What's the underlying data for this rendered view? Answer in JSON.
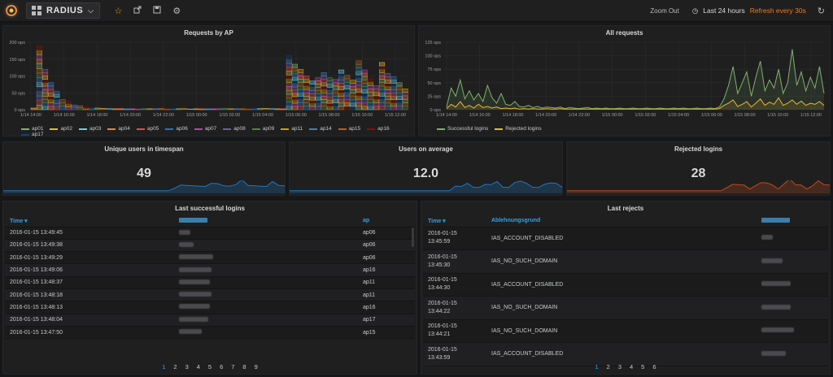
{
  "navbar": {
    "dashboard_title": "RADIUS",
    "icons": [
      "star-icon",
      "share-icon",
      "save-icon",
      "gear-icon"
    ],
    "zoom_out": "Zoom Out",
    "time_range": "Last 24 hours",
    "refresh": "Refresh every 30s"
  },
  "panels": {
    "requests_by_ap": {
      "title": "Requests by AP",
      "legend": [
        {
          "name": "ap01",
          "color": "#7eb26d"
        },
        {
          "name": "ap02",
          "color": "#eab839"
        },
        {
          "name": "ap03",
          "color": "#6ed0e0"
        },
        {
          "name": "ap04",
          "color": "#ef843c"
        },
        {
          "name": "ap05",
          "color": "#e24d42"
        },
        {
          "name": "ap06",
          "color": "#1f78c1"
        },
        {
          "name": "ap07",
          "color": "#ba43a9"
        },
        {
          "name": "ap08",
          "color": "#705da0"
        },
        {
          "name": "ap09",
          "color": "#508642"
        },
        {
          "name": "ap11",
          "color": "#cca300"
        },
        {
          "name": "ap14",
          "color": "#447ebc"
        },
        {
          "name": "ap15",
          "color": "#c15c17"
        },
        {
          "name": "ap16",
          "color": "#890f02"
        },
        {
          "name": "ap17",
          "color": "#0a437c"
        }
      ]
    },
    "all_requests": {
      "title": "All requests",
      "legend": [
        {
          "name": "Successful logins",
          "color": "#7eb26d"
        },
        {
          "name": "Rejected logins",
          "color": "#eab839"
        }
      ]
    },
    "unique_users": {
      "title": "Unique users in timespan",
      "value": "49",
      "spark_color": "#1f78c1"
    },
    "users_average": {
      "title": "Users on average",
      "value": "12.0",
      "spark_color": "#1f78c1"
    },
    "rejected_logins": {
      "title": "Rejected logins",
      "value": "28",
      "spark_color": "#bf4a1b"
    },
    "last_logins": {
      "title": "Last successful logins",
      "columns": [
        "Time ▾",
        "ap"
      ],
      "rows": [
        {
          "time": "2016-01-15 13:49:45",
          "ap": "ap06"
        },
        {
          "time": "2016-01-15 13:49:38",
          "ap": "ap06"
        },
        {
          "time": "2016-01-15 13:49:29",
          "ap": "ap06"
        },
        {
          "time": "2016-01-15 13:49:06",
          "ap": "ap16"
        },
        {
          "time": "2016-01-15 13:48:37",
          "ap": "ap11"
        },
        {
          "time": "2016-01-15 13:48:18",
          "ap": "ap11"
        },
        {
          "time": "2016-01-15 13:48:13",
          "ap": "ap16"
        },
        {
          "time": "2016-01-15 13:48:04",
          "ap": "ap17"
        },
        {
          "time": "2016-01-15 13:47:50",
          "ap": "ap15"
        }
      ],
      "pages": [
        "1",
        "2",
        "3",
        "4",
        "5",
        "6",
        "7",
        "8",
        "9"
      ]
    },
    "last_rejects": {
      "title": "Last rejects",
      "columns": [
        "Time ▾",
        "Ablehnungsgrund"
      ],
      "rows": [
        {
          "date": "2016-01-15",
          "time": "13:45:59",
          "reason": "IAS_ACCOUNT_DISABLED"
        },
        {
          "date": "2016-01-15",
          "time": "13:45:30",
          "reason": "IAS_NO_SUCH_DOMAIN"
        },
        {
          "date": "2016-01-15",
          "time": "13:44:30",
          "reason": "IAS_ACCOUNT_DISABLED"
        },
        {
          "date": "2016-01-15",
          "time": "13:44:22",
          "reason": "IAS_NO_SUCH_DOMAIN"
        },
        {
          "date": "2016-01-15",
          "time": "13:44:21",
          "reason": "IAS_NO_SUCH_DOMAIN"
        },
        {
          "date": "2016-01-15",
          "time": "13:43:59",
          "reason": "IAS_ACCOUNT_DISABLED"
        }
      ],
      "pages": [
        "1",
        "2",
        "3",
        "4",
        "5",
        "6"
      ]
    }
  },
  "chart_data": [
    {
      "type": "bar",
      "title": "Requests by AP",
      "ylim": [
        0,
        200
      ],
      "y_ticks": [
        "0 ops",
        "50 ops",
        "100 ops",
        "150 ops",
        "200 ops"
      ],
      "x_ticks": [
        "1/14 14:00",
        "1/14 16:00",
        "1/14 18:00",
        "1/14 20:00",
        "1/14 22:00",
        "1/15 00:00",
        "1/15 02:00",
        "1/15 04:00",
        "1/15 06:00",
        "1/15 08:00",
        "1/15 10:00",
        "1/15 12:00"
      ],
      "totals": [
        5,
        190,
        120,
        80,
        55,
        30,
        25,
        14,
        12,
        8,
        5,
        5,
        4,
        3,
        3,
        4,
        3,
        3,
        2,
        3,
        3,
        3,
        4,
        3,
        3,
        3,
        3,
        2,
        3,
        3,
        3,
        3,
        3,
        4,
        3,
        3,
        3,
        3,
        4,
        4,
        4,
        3,
        3,
        3,
        160,
        135,
        120,
        100,
        85,
        95,
        110,
        95,
        90,
        118,
        102,
        88,
        145,
        118,
        92,
        72,
        140,
        108,
        98,
        80,
        62
      ]
    },
    {
      "type": "line",
      "title": "All requests",
      "ylim": [
        0,
        125
      ],
      "y_ticks": [
        "0 ops",
        "25 ops",
        "50 ops",
        "75 ops",
        "100 ops",
        "125 ops"
      ],
      "x_ticks": [
        "1/14 14:00",
        "1/14 16:00",
        "1/14 18:00",
        "1/14 20:00",
        "1/14 22:00",
        "1/15 00:00",
        "1/15 02:00",
        "1/15 04:00",
        "1/15 06:00",
        "1/15 08:00",
        "1/15 10:00",
        "1/15 12:00"
      ],
      "series": [
        {
          "name": "Successful logins",
          "values": [
            5,
            40,
            25,
            55,
            20,
            35,
            18,
            30,
            15,
            45,
            22,
            12,
            30,
            10,
            8,
            15,
            6,
            5,
            8,
            4,
            6,
            3,
            5,
            4,
            3,
            5,
            2,
            4,
            3,
            2,
            3,
            4,
            2,
            3,
            2,
            3,
            2,
            2,
            3,
            2,
            2,
            3,
            2,
            2,
            3,
            2,
            2,
            3,
            2,
            2,
            3,
            2,
            3,
            2,
            2,
            3,
            2,
            2,
            3,
            2,
            5,
            20,
            45,
            80,
            30,
            50,
            70,
            25,
            60,
            90,
            35,
            55,
            40,
            75,
            30,
            50,
            112,
            45,
            70,
            35,
            60,
            40,
            80,
            30
          ]
        },
        {
          "name": "Rejected logins",
          "values": [
            2,
            10,
            5,
            15,
            4,
            8,
            3,
            10,
            4,
            6,
            3,
            5,
            2,
            3,
            2,
            3,
            1,
            2,
            1,
            2,
            1,
            1,
            2,
            1,
            1,
            2,
            1,
            1,
            1,
            1,
            1,
            1,
            1,
            1,
            1,
            1,
            1,
            1,
            1,
            1,
            1,
            1,
            1,
            1,
            1,
            1,
            1,
            1,
            1,
            1,
            1,
            1,
            1,
            1,
            1,
            1,
            1,
            1,
            1,
            1,
            2,
            8,
            12,
            18,
            6,
            10,
            15,
            5,
            12,
            20,
            8,
            14,
            10,
            22,
            8,
            12,
            18,
            10,
            16,
            8,
            12,
            10,
            15,
            8
          ]
        }
      ]
    }
  ]
}
